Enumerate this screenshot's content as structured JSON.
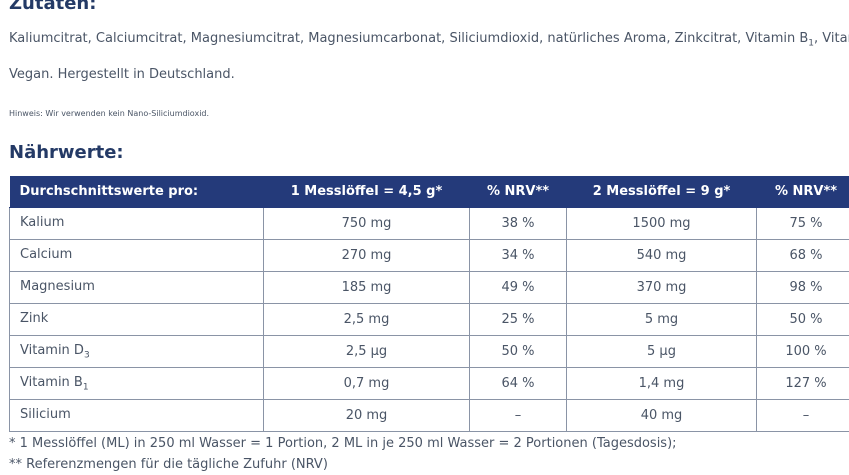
{
  "zutaten": {
    "heading": "Zutaten:",
    "ingredients_text": "Kaliumcitrat, Calciumcitrat, Magnesiumcitrat, Magnesiumcarbonat, Siliciumdioxid, natürliches Aroma, Zinkcitrat, Vitamin B",
    "ingredients_sub": "1",
    "ingredients_tail": ", Vitam",
    "vegan_text": "Vegan. Hergestellt in Deutschland.",
    "hinweis": "Hinweis: Wir verwenden kein Nano-Siliciumdioxid."
  },
  "naehrwerte": {
    "heading": "Nährwerte:",
    "columns": [
      "Durchschnittswerte pro:",
      "1 Messlöffel = 4,5 g*",
      "% NRV**",
      "2 Messlöffel = 9 g*",
      "% NRV**"
    ],
    "rows": [
      {
        "name": "Kalium",
        "sub": "",
        "v1": "750 mg",
        "nrv1": "38 %",
        "v2": "1500 mg",
        "nrv2": "75 %"
      },
      {
        "name": "Calcium",
        "sub": "",
        "v1": "270 mg",
        "nrv1": "34 %",
        "v2": "540 mg",
        "nrv2": "68 %"
      },
      {
        "name": "Magnesium",
        "sub": "",
        "v1": "185 mg",
        "nrv1": "49 %",
        "v2": "370 mg",
        "nrv2": "98 %"
      },
      {
        "name": "Zink",
        "sub": "",
        "v1": "2,5 mg",
        "nrv1": "25 %",
        "v2": "5 mg",
        "nrv2": "50 %"
      },
      {
        "name": "Vitamin D",
        "sub": "3",
        "v1": "2,5 µg",
        "nrv1": "50 %",
        "v2": "5 µg",
        "nrv2": "100 %"
      },
      {
        "name": "Vitamin B",
        "sub": "1",
        "v1": "0,7 mg",
        "nrv1": "64 %",
        "v2": "1,4 mg",
        "nrv2": "127 %"
      },
      {
        "name": "Silicium",
        "sub": "",
        "v1": "20 mg",
        "nrv1": "–",
        "v2": "40 mg",
        "nrv2": "–"
      }
    ]
  },
  "footnotes": {
    "note1": "* 1 Messlöffel (ML) in 250 ml Wasser = 1 Portion, 2 ML in je 250 ml Wasser = 2 Portionen (Tagesdosis);",
    "note2": "** Referenzmengen für die tägliche Zufuhr (NRV)"
  },
  "colors": {
    "heading": "#243a66",
    "table_header_bg": "#243a7a",
    "text": "#4a5566",
    "border": "#8a94a6"
  }
}
